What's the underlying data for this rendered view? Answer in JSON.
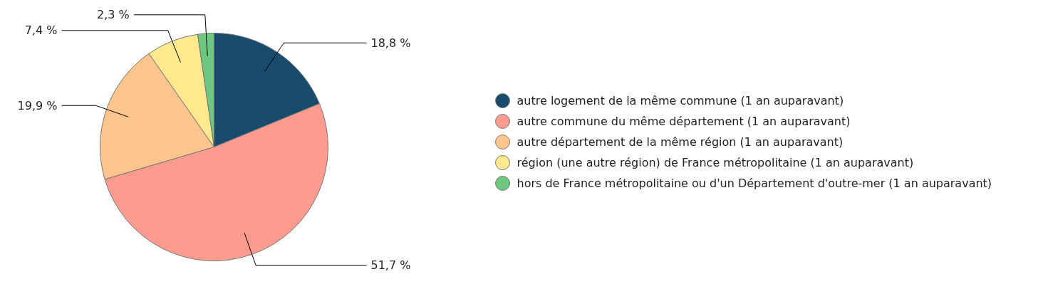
{
  "chart_data": {
    "type": "pie",
    "categories": [
      "autre logement de la même commune (1 an auparavant)",
      "autre commune du même département (1 an auparavant)",
      "autre département de la même région (1 an auparavant)",
      "région (une autre région) de France métropolitaine (1 an auparavant)",
      "hors de France métropolitaine ou d'un Département d'outre-mer (1 an auparavant)"
    ],
    "values": [
      18.8,
      51.7,
      19.9,
      7.4,
      2.3
    ],
    "value_labels": [
      "18,8 %",
      "51,7 %",
      "19,9 %",
      "7,4 %",
      "2,3 %"
    ],
    "colors": [
      "#184b6c",
      "#fe9b8f",
      "#ffc58c",
      "#ffe98f",
      "#6dc77e"
    ],
    "legend": "right"
  }
}
